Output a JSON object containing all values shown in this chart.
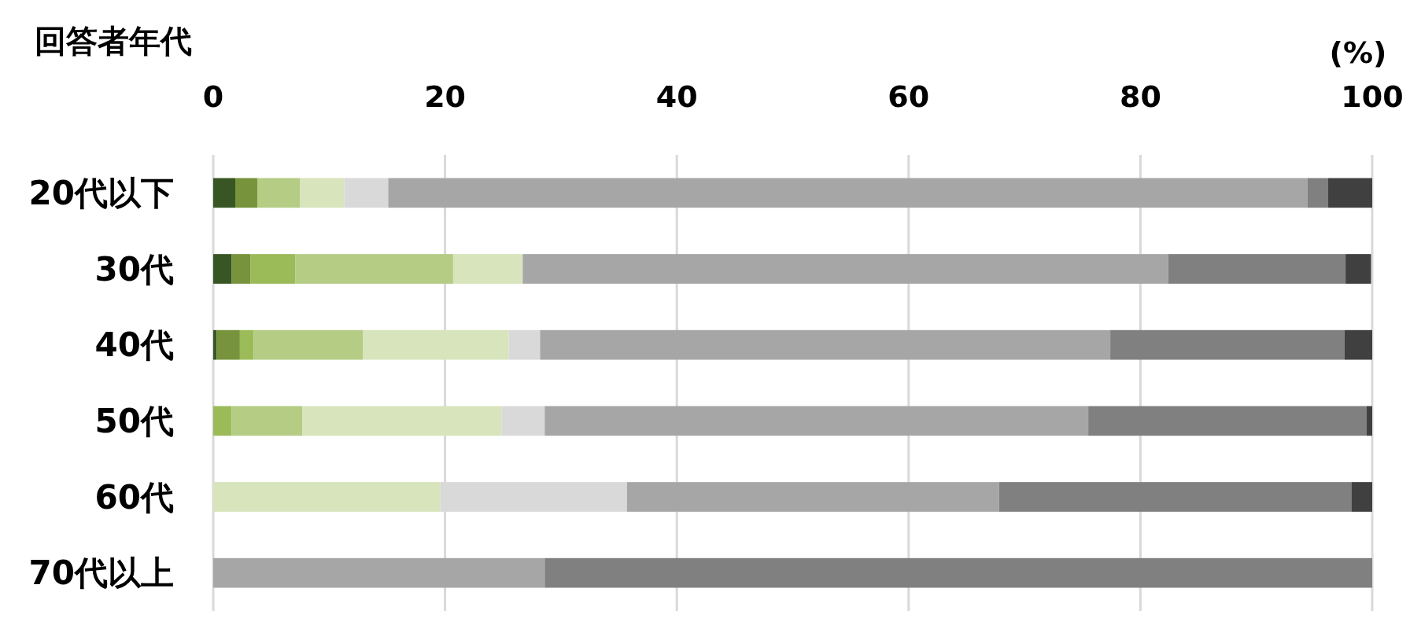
{
  "chart_data": {
    "type": "bar",
    "orientation": "horizontal",
    "stacked": true,
    "ylabel": "回答者年代",
    "xlabel": "(%)",
    "categories": [
      "20代以下",
      "30代",
      "40代",
      "50代",
      "60代",
      "70代以上"
    ],
    "series": [
      {
        "color": "#375623",
        "values": [
          1.9,
          1.6,
          0.3,
          0,
          0,
          0
        ]
      },
      {
        "color": "#77933c",
        "values": [
          1.9,
          1.6,
          2.0,
          0,
          0,
          0
        ]
      },
      {
        "color": "#9bbb59",
        "values": [
          0,
          3.9,
          1.2,
          1.6,
          0,
          0
        ]
      },
      {
        "color": "#b4cc84",
        "values": [
          3.7,
          13.6,
          9.4,
          6.1,
          0,
          0
        ]
      },
      {
        "color": "#d8e4bc",
        "values": [
          3.8,
          6.0,
          12.6,
          17.2,
          19.6,
          0
        ]
      },
      {
        "color": "#d9d9d9",
        "values": [
          3.8,
          0,
          2.7,
          3.7,
          16.1,
          0
        ]
      },
      {
        "color": "#a6a6a6",
        "values": [
          79.3,
          55.7,
          49.2,
          46.9,
          32.1,
          28.6
        ]
      },
      {
        "color": "#808080",
        "values": [
          1.8,
          15.3,
          20.2,
          24.0,
          30.4,
          71.4
        ]
      },
      {
        "color": "#404040",
        "values": [
          3.8,
          2.2,
          2.4,
          0.5,
          1.8,
          0
        ]
      }
    ],
    "xlim": [
      0,
      100
    ],
    "xticks": [
      0,
      20,
      40,
      60,
      80,
      100
    ],
    "grid": "x"
  }
}
